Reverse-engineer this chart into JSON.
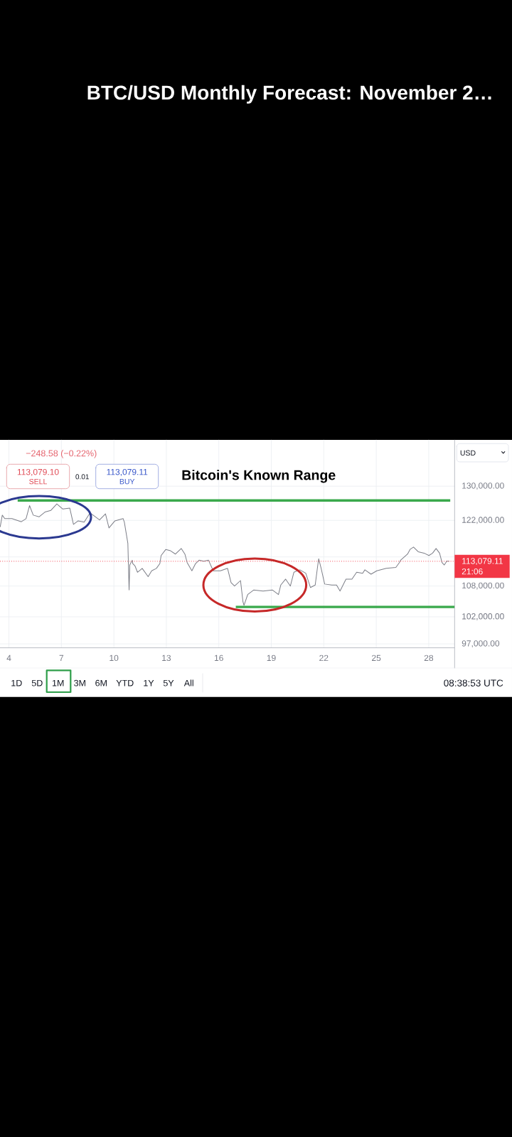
{
  "chart_data": {
    "type": "line",
    "title": "BTC/USD Monthly Forecast: November 2…",
    "subtitle": "Bitcoin's Known Range",
    "ylabel": "USD",
    "x": [
      3.5,
      3.62,
      3.76,
      4.17,
      4.71,
      4.98,
      5.18,
      5.39,
      5.72,
      6.06,
      6.4,
      6.74,
      7.08,
      7.48,
      7.69,
      7.96,
      8.3,
      8.64,
      8.91,
      9.18,
      9.52,
      9.72,
      10.06,
      10.53,
      10.6,
      10.8,
      10.87,
      10.91,
      11.05,
      11.08,
      11.21,
      11.35,
      11.62,
      11.96,
      12.16,
      12.43,
      12.63,
      12.7,
      12.97,
      13.24,
      13.52,
      13.85,
      14.06,
      14.19,
      14.46,
      14.67,
      14.87,
      15.14,
      15.41,
      15.68,
      16.09,
      16.5,
      16.7,
      16.9,
      17.24,
      17.38,
      17.44,
      17.65,
      17.99,
      18.53,
      19.07,
      19.41,
      19.54,
      19.82,
      20.09,
      20.29,
      20.63,
      20.97,
      21.24,
      21.51,
      21.65,
      21.71,
      21.85,
      22.05,
      22.46,
      22.73,
      22.93,
      23.27,
      23.61,
      23.88,
      24.22,
      24.35,
      24.7,
      25.03,
      25.57,
      26.12,
      26.32,
      26.39,
      26.79,
      26.93,
      27.13,
      27.4,
      27.74,
      28.01,
      28.22,
      28.42,
      28.62,
      28.76,
      28.89,
      29.03,
      29.17
    ],
    "series": [
      {
        "color": "#7d7f88",
        "values": [
          120500,
          123200,
          122400,
          122400,
          121700,
          122400,
          125400,
          123200,
          122800,
          123900,
          124300,
          125800,
          124600,
          124800,
          121100,
          121900,
          121600,
          123700,
          122900,
          122100,
          123500,
          120300,
          121900,
          122400,
          121600,
          116900,
          107200,
          112300,
          113300,
          112600,
          112100,
          110800,
          111600,
          109900,
          111100,
          111600,
          112600,
          114300,
          115600,
          115300,
          114600,
          115800,
          114600,
          112800,
          111100,
          112600,
          113300,
          113100,
          113300,
          111100,
          111100,
          111600,
          108700,
          108000,
          109100,
          104900,
          104200,
          106300,
          107200,
          107000,
          107200,
          106300,
          108200,
          109400,
          108000,
          110800,
          111300,
          110600,
          107700,
          108200,
          112100,
          113600,
          111600,
          108400,
          108200,
          108200,
          107000,
          109400,
          109400,
          110800,
          110600,
          111300,
          110400,
          111100,
          111600,
          111800,
          112800,
          113300,
          114600,
          115600,
          116100,
          115100,
          114800,
          114300,
          114800,
          115800,
          114800,
          112800,
          112300,
          113100,
          113100
        ]
      },
      {
        "color": "#3aa94c",
        "x": [
          4.5,
          29.23
        ],
        "values": [
          126600,
          126600
        ]
      },
      {
        "color": "#3aa94c",
        "x": [
          16.97,
          29.48
        ],
        "values": [
          103900,
          103900
        ]
      }
    ],
    "xlim": [
      3.49,
      29.48
    ],
    "xticks": [
      4,
      7,
      10,
      13,
      16,
      19,
      22,
      25,
      28
    ],
    "ylim": [
      96300,
      141700
    ],
    "yticks": [
      {
        "value": 97000,
        "label": "97,000.00"
      },
      {
        "value": 102000,
        "label": "102,000.00"
      },
      {
        "value": 108000,
        "label": "108,000.00"
      },
      {
        "value": 114000,
        "label": null
      },
      {
        "value": 122000,
        "label": "122,000.00"
      },
      {
        "value": 130000,
        "label": "130,000.00"
      }
    ],
    "log": true,
    "grid": true,
    "ref_lines": [
      {
        "axis": "y",
        "value": 113079.11,
        "label": "113,079.11",
        "color": "#f23645",
        "line_style": "dotted"
      }
    ],
    "annotations": [
      "−248.58 (−0.22%)",
      "113,079.10",
      "SELL",
      "0.01",
      "113,079.11",
      "BUY",
      "21:06",
      "1D",
      "5D",
      "1M",
      "3M",
      "6M",
      "YTD",
      "1Y",
      "5Y",
      "All",
      "08:38:53 UTC"
    ]
  }
}
